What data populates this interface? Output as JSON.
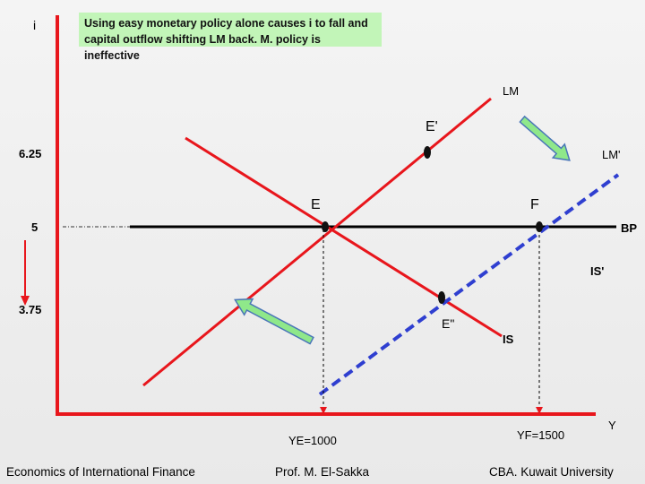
{
  "note": "Using easy monetary policy alone causes i to fall and capital outflow shifting LM back. M. policy is ineffective",
  "axes": {
    "y_label": "i",
    "x_label": "Y"
  },
  "y_ticks": [
    "6.25",
    "5",
    "3.75"
  ],
  "x_ticks": [
    "YE=1000",
    "YF=1500"
  ],
  "curve_labels": {
    "lm": "LM",
    "lm_shifted": "LM'",
    "bp": "BP",
    "is_shifted": "IS'",
    "is": "IS"
  },
  "points": {
    "e": "E",
    "f": "F",
    "e_prime": "E'",
    "e_double_prime": "E\""
  },
  "footer": {
    "left": "Economics of International Finance",
    "center": "Prof. M. El-Sakka",
    "right": "CBA. Kuwait University"
  },
  "colors": {
    "axis": "#e8161c",
    "curve": "#e8161c",
    "bp": "#000000",
    "dashed": "#2f3fd0",
    "note_bg": "#c2f5b8",
    "arrow": "#7fe07f"
  },
  "icons": [
    "shift-arrow-down-right-icon",
    "shift-arrow-up-left-icon",
    "interest-down-arrow-icon"
  ]
}
